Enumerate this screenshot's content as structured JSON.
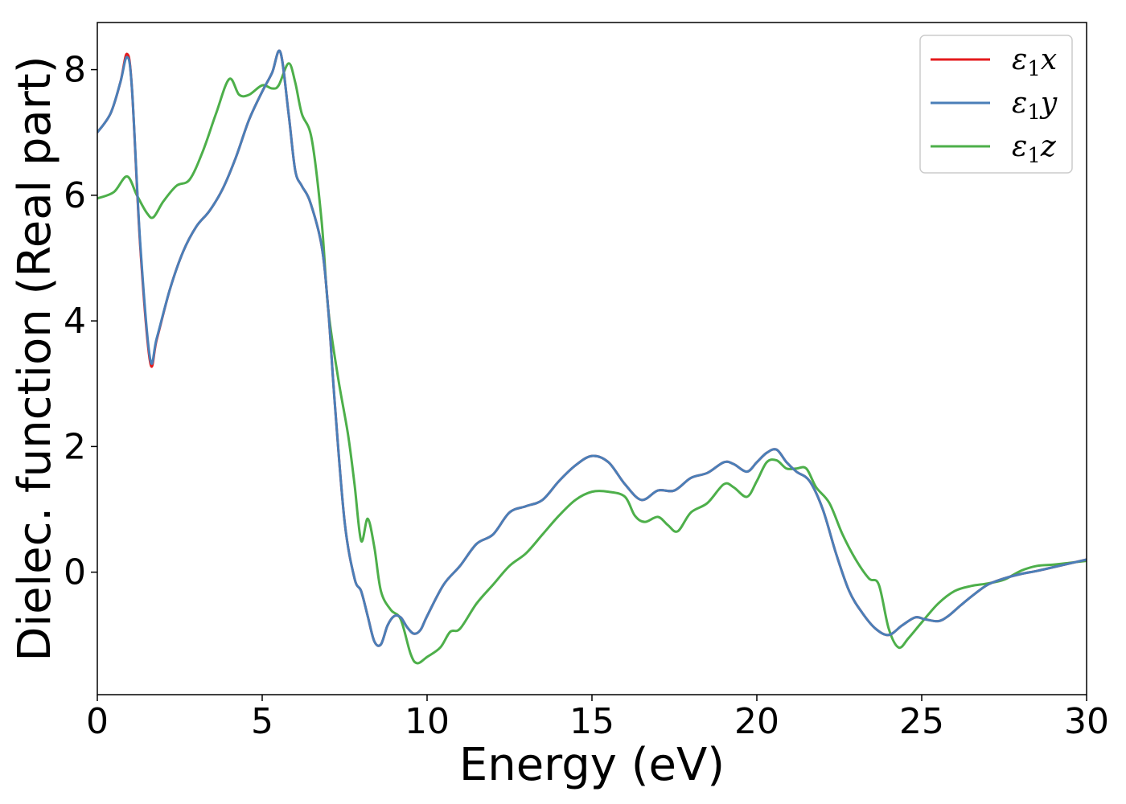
{
  "chart_data": {
    "type": "line",
    "title": "",
    "xlabel": "Energy (eV)",
    "ylabel": "Dielec. function (Real part)",
    "xlim": [
      0,
      30
    ],
    "ylim": [
      -1.95,
      8.75
    ],
    "xticks": [
      0,
      5,
      10,
      15,
      20,
      25,
      30
    ],
    "yticks": [
      0,
      2,
      4,
      6,
      8
    ],
    "grid": false,
    "legend_position": "top-right",
    "series": [
      {
        "name": "ε1x",
        "label_base": "ε",
        "label_sub": "1",
        "label_var": "x",
        "color": "#e41a1c",
        "x": [
          0,
          0.4,
          0.7,
          0.9,
          1.05,
          1.3,
          1.6,
          1.8,
          2.2,
          2.6,
          3.0,
          3.4,
          3.8,
          4.2,
          4.6,
          5.0,
          5.3,
          5.55,
          5.8,
          6.0,
          6.2,
          6.45,
          6.8,
          7.0,
          7.2,
          7.5,
          7.8,
          8.0,
          8.2,
          8.4,
          8.6,
          8.8,
          9.0,
          9.2,
          9.4,
          9.6,
          9.8,
          10.0,
          10.5,
          11.0,
          11.5,
          12.0,
          12.5,
          13.0,
          13.5,
          14.0,
          14.5,
          15.0,
          15.5,
          16.0,
          16.5,
          17.0,
          17.5,
          18.0,
          18.5,
          19.0,
          19.3,
          19.7,
          20.0,
          20.3,
          20.6,
          20.9,
          21.2,
          21.6,
          22.0,
          22.4,
          22.8,
          23.2,
          23.6,
          24.0,
          24.4,
          24.8,
          25.1,
          25.5,
          25.8,
          26.2,
          26.6,
          27.0,
          27.5,
          28.0,
          28.5,
          29.0,
          29.5,
          30.0
        ],
        "values": [
          7.0,
          7.3,
          7.8,
          8.25,
          7.7,
          5.2,
          3.35,
          3.7,
          4.5,
          5.1,
          5.5,
          5.75,
          6.1,
          6.6,
          7.2,
          7.65,
          7.95,
          8.28,
          7.3,
          6.4,
          6.15,
          5.9,
          5.2,
          4.2,
          2.7,
          0.8,
          -0.1,
          -0.3,
          -0.7,
          -1.1,
          -1.15,
          -0.85,
          -0.7,
          -0.72,
          -0.88,
          -0.98,
          -0.92,
          -0.7,
          -0.2,
          0.1,
          0.45,
          0.6,
          0.95,
          1.05,
          1.15,
          1.45,
          1.7,
          1.85,
          1.75,
          1.4,
          1.15,
          1.3,
          1.3,
          1.5,
          1.58,
          1.75,
          1.72,
          1.6,
          1.75,
          1.9,
          1.95,
          1.75,
          1.6,
          1.45,
          1.0,
          0.3,
          -0.3,
          -0.65,
          -0.9,
          -1.0,
          -0.85,
          -0.72,
          -0.75,
          -0.78,
          -0.7,
          -0.52,
          -0.35,
          -0.2,
          -0.1,
          -0.03,
          0.02,
          0.08,
          0.14,
          0.2
        ]
      },
      {
        "name": "ε1y",
        "label_base": "ε",
        "label_sub": "1",
        "label_var": "y",
        "color": "#4a7fb8",
        "x": [
          0,
          0.4,
          0.7,
          0.9,
          1.05,
          1.3,
          1.6,
          1.8,
          2.2,
          2.6,
          3.0,
          3.4,
          3.8,
          4.2,
          4.6,
          5.0,
          5.3,
          5.55,
          5.8,
          6.0,
          6.2,
          6.45,
          6.8,
          7.0,
          7.2,
          7.5,
          7.8,
          8.0,
          8.2,
          8.4,
          8.6,
          8.8,
          9.0,
          9.2,
          9.4,
          9.6,
          9.8,
          10.0,
          10.5,
          11.0,
          11.5,
          12.0,
          12.5,
          13.0,
          13.5,
          14.0,
          14.5,
          15.0,
          15.5,
          16.0,
          16.5,
          17.0,
          17.5,
          18.0,
          18.5,
          19.0,
          19.3,
          19.7,
          20.0,
          20.3,
          20.6,
          20.9,
          21.2,
          21.6,
          22.0,
          22.4,
          22.8,
          23.2,
          23.6,
          24.0,
          24.4,
          24.8,
          25.1,
          25.5,
          25.8,
          26.2,
          26.6,
          27.0,
          27.5,
          28.0,
          28.5,
          29.0,
          29.5,
          30.0
        ],
        "values": [
          7.0,
          7.3,
          7.8,
          8.2,
          7.7,
          5.25,
          3.4,
          3.72,
          4.5,
          5.1,
          5.5,
          5.75,
          6.1,
          6.6,
          7.2,
          7.65,
          7.95,
          8.28,
          7.3,
          6.4,
          6.15,
          5.9,
          5.2,
          4.2,
          2.7,
          0.8,
          -0.1,
          -0.3,
          -0.7,
          -1.1,
          -1.15,
          -0.85,
          -0.7,
          -0.72,
          -0.88,
          -0.98,
          -0.92,
          -0.7,
          -0.2,
          0.1,
          0.45,
          0.6,
          0.95,
          1.05,
          1.15,
          1.45,
          1.7,
          1.85,
          1.75,
          1.4,
          1.15,
          1.3,
          1.3,
          1.5,
          1.58,
          1.75,
          1.72,
          1.6,
          1.75,
          1.9,
          1.95,
          1.75,
          1.6,
          1.45,
          1.0,
          0.3,
          -0.3,
          -0.65,
          -0.9,
          -1.0,
          -0.85,
          -0.72,
          -0.75,
          -0.78,
          -0.7,
          -0.52,
          -0.35,
          -0.2,
          -0.1,
          -0.03,
          0.02,
          0.08,
          0.14,
          0.2
        ]
      },
      {
        "name": "ε1z",
        "label_base": "ε",
        "label_sub": "1",
        "label_var": "z",
        "color": "#4daf4a",
        "x": [
          0,
          0.5,
          0.9,
          1.2,
          1.5,
          1.7,
          2.0,
          2.4,
          2.8,
          3.2,
          3.6,
          4.0,
          4.3,
          4.6,
          5.0,
          5.3,
          5.5,
          5.8,
          6.0,
          6.2,
          6.5,
          6.8,
          7.0,
          7.3,
          7.6,
          7.8,
          8.0,
          8.2,
          8.4,
          8.6,
          8.9,
          9.2,
          9.5,
          9.7,
          10.0,
          10.4,
          10.7,
          11.0,
          11.5,
          12.0,
          12.5,
          13.0,
          13.5,
          14.0,
          14.5,
          15.0,
          15.5,
          16.0,
          16.3,
          16.6,
          17.0,
          17.3,
          17.6,
          18.0,
          18.5,
          19.0,
          19.3,
          19.7,
          20.0,
          20.3,
          20.6,
          20.9,
          21.2,
          21.5,
          21.8,
          22.2,
          22.6,
          23.0,
          23.4,
          23.7,
          24.0,
          24.3,
          24.6,
          25.0,
          25.5,
          26.0,
          26.5,
          27.0,
          27.5,
          28.0,
          28.5,
          29.0,
          29.5,
          30.0
        ],
        "values": [
          5.95,
          6.05,
          6.3,
          6.0,
          5.72,
          5.65,
          5.9,
          6.15,
          6.25,
          6.7,
          7.3,
          7.85,
          7.6,
          7.6,
          7.75,
          7.7,
          7.75,
          8.1,
          7.8,
          7.3,
          6.9,
          5.6,
          4.2,
          3.1,
          2.2,
          1.4,
          0.5,
          0.85,
          0.4,
          -0.3,
          -0.6,
          -0.75,
          -1.3,
          -1.45,
          -1.35,
          -1.2,
          -0.95,
          -0.9,
          -0.5,
          -0.2,
          0.1,
          0.3,
          0.6,
          0.9,
          1.15,
          1.28,
          1.28,
          1.2,
          0.9,
          0.8,
          0.88,
          0.75,
          0.65,
          0.95,
          1.1,
          1.4,
          1.35,
          1.2,
          1.45,
          1.75,
          1.78,
          1.65,
          1.65,
          1.65,
          1.35,
          1.1,
          0.6,
          0.2,
          -0.1,
          -0.2,
          -0.9,
          -1.2,
          -1.05,
          -0.8,
          -0.5,
          -0.3,
          -0.22,
          -0.18,
          -0.12,
          0.02,
          0.1,
          0.12,
          0.15,
          0.18
        ]
      }
    ]
  }
}
